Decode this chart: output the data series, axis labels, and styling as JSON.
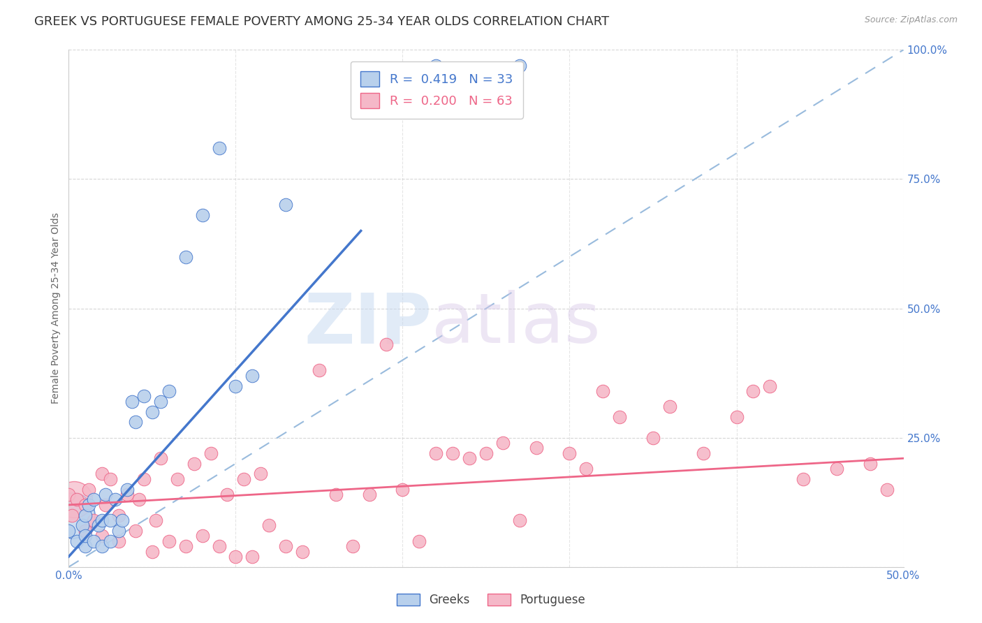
{
  "title": "GREEK VS PORTUGUESE FEMALE POVERTY AMONG 25-34 YEAR OLDS CORRELATION CHART",
  "source": "Source: ZipAtlas.com",
  "ylabel": "Female Poverty Among 25-34 Year Olds",
  "xlim": [
    0.0,
    0.5
  ],
  "ylim": [
    0.0,
    1.0
  ],
  "greek_R": 0.419,
  "greek_N": 33,
  "portuguese_R": 0.2,
  "portuguese_N": 63,
  "greek_color": "#b8d0ec",
  "portuguese_color": "#f5b8c8",
  "greek_line_color": "#4477cc",
  "portuguese_line_color": "#ee6688",
  "diagonal_color": "#99bbdd",
  "background_color": "#ffffff",
  "greek_points_x": [
    0.0,
    0.005,
    0.008,
    0.01,
    0.01,
    0.01,
    0.012,
    0.015,
    0.015,
    0.018,
    0.02,
    0.02,
    0.022,
    0.025,
    0.025,
    0.028,
    0.03,
    0.032,
    0.035,
    0.038,
    0.04,
    0.045,
    0.05,
    0.055,
    0.06,
    0.07,
    0.08,
    0.09,
    0.1,
    0.11,
    0.13,
    0.22,
    0.27
  ],
  "greek_points_y": [
    0.07,
    0.05,
    0.08,
    0.04,
    0.06,
    0.1,
    0.12,
    0.05,
    0.13,
    0.08,
    0.04,
    0.09,
    0.14,
    0.05,
    0.09,
    0.13,
    0.07,
    0.09,
    0.15,
    0.32,
    0.28,
    0.33,
    0.3,
    0.32,
    0.34,
    0.6,
    0.68,
    0.81,
    0.35,
    0.37,
    0.7,
    0.97,
    0.97
  ],
  "portuguese_points_x": [
    0.0,
    0.002,
    0.005,
    0.01,
    0.01,
    0.012,
    0.015,
    0.02,
    0.02,
    0.022,
    0.025,
    0.03,
    0.03,
    0.035,
    0.04,
    0.042,
    0.045,
    0.05,
    0.052,
    0.055,
    0.06,
    0.065,
    0.07,
    0.075,
    0.08,
    0.085,
    0.09,
    0.095,
    0.1,
    0.105,
    0.11,
    0.115,
    0.12,
    0.13,
    0.14,
    0.15,
    0.16,
    0.17,
    0.18,
    0.19,
    0.2,
    0.21,
    0.22,
    0.23,
    0.24,
    0.25,
    0.26,
    0.27,
    0.28,
    0.3,
    0.31,
    0.32,
    0.33,
    0.35,
    0.36,
    0.38,
    0.4,
    0.41,
    0.42,
    0.44,
    0.46,
    0.48,
    0.49
  ],
  "portuguese_points_y": [
    0.14,
    0.1,
    0.13,
    0.07,
    0.12,
    0.15,
    0.09,
    0.06,
    0.18,
    0.12,
    0.17,
    0.05,
    0.1,
    0.14,
    0.07,
    0.13,
    0.17,
    0.03,
    0.09,
    0.21,
    0.05,
    0.17,
    0.04,
    0.2,
    0.06,
    0.22,
    0.04,
    0.14,
    0.02,
    0.17,
    0.02,
    0.18,
    0.08,
    0.04,
    0.03,
    0.38,
    0.14,
    0.04,
    0.14,
    0.43,
    0.15,
    0.05,
    0.22,
    0.22,
    0.21,
    0.22,
    0.24,
    0.09,
    0.23,
    0.22,
    0.19,
    0.34,
    0.29,
    0.25,
    0.31,
    0.22,
    0.29,
    0.34,
    0.35,
    0.17,
    0.19,
    0.2,
    0.15
  ],
  "watermark_zip": "ZIP",
  "watermark_atlas": "atlas",
  "title_fontsize": 13,
  "label_fontsize": 10,
  "tick_fontsize": 11,
  "legend_fontsize": 13,
  "greek_line_x0": 0.0,
  "greek_line_y0": 0.02,
  "greek_line_x1": 0.175,
  "greek_line_y1": 0.65,
  "portuguese_line_x0": 0.0,
  "portuguese_line_y0": 0.12,
  "portuguese_line_x1": 0.5,
  "portuguese_line_y1": 0.21
}
